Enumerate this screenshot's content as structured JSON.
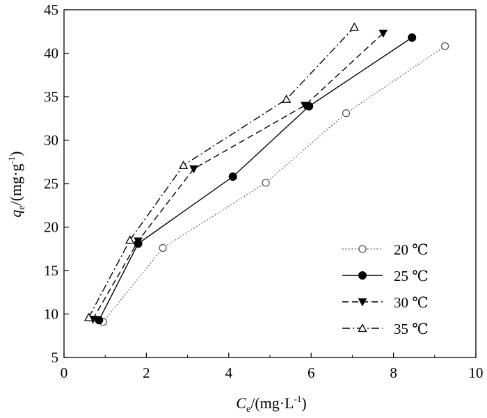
{
  "chart_data": {
    "type": "line",
    "xlabel": {
      "main": "C",
      "sub": "e",
      "unit": "/(mg·L",
      "sup": "-1",
      "close": ")"
    },
    "ylabel": {
      "main": "q",
      "sub": "e",
      "unit": "/(mg·g",
      "sup": "-1",
      "close": ")"
    },
    "xlim": [
      0,
      10
    ],
    "ylim": [
      5,
      45
    ],
    "xticks": [
      0,
      2,
      4,
      6,
      8,
      10
    ],
    "yticks": [
      5,
      10,
      15,
      20,
      25,
      30,
      35,
      40,
      45
    ],
    "grid": false,
    "legend_position": "lower-right",
    "series": [
      {
        "name": "20 ℃",
        "marker": "circle-open",
        "line": "dotted",
        "color": "#555555",
        "x": [
          0.95,
          2.4,
          4.9,
          6.85,
          9.25
        ],
        "y": [
          9.1,
          17.6,
          25.1,
          33.1,
          40.8
        ]
      },
      {
        "name": "25 ℃",
        "marker": "circle-filled",
        "line": "solid",
        "color": "#000000",
        "x": [
          0.85,
          1.8,
          4.1,
          5.95,
          8.45
        ],
        "y": [
          9.3,
          18.1,
          25.8,
          33.9,
          41.8
        ]
      },
      {
        "name": "30 ℃",
        "marker": "triangle-down-filled",
        "line": "dashed",
        "color": "#000000",
        "x": [
          0.7,
          1.8,
          3.15,
          5.85,
          7.75
        ],
        "y": [
          9.4,
          18.4,
          26.7,
          34.0,
          42.3
        ]
      },
      {
        "name": "35 ℃",
        "marker": "triangle-up-open",
        "line": "dashdot",
        "color": "#000000",
        "x": [
          0.6,
          1.6,
          2.9,
          5.4,
          7.05
        ],
        "y": [
          9.6,
          18.5,
          27.1,
          34.7,
          43.0
        ]
      }
    ]
  }
}
